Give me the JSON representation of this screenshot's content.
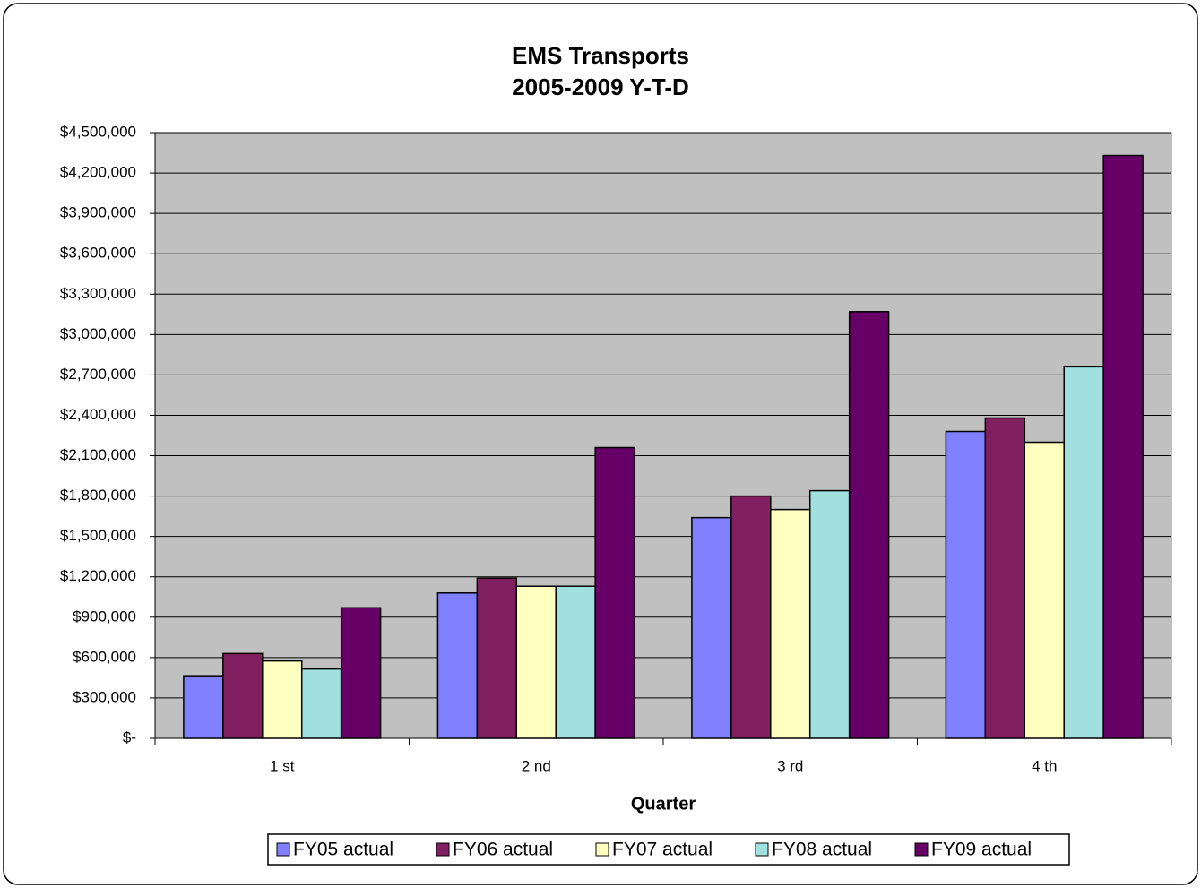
{
  "chart_data": {
    "type": "bar",
    "title": "EMS Transports",
    "subtitle": "2005-2009 Y-T-D",
    "x_label": "Quarter",
    "categories": [
      "1 st",
      "2 nd",
      "3 rd",
      "4 th"
    ],
    "series": [
      {
        "name": "FY05 actual",
        "color": "#8080ff",
        "values": [
          465000,
          1080000,
          1640000,
          2280000
        ]
      },
      {
        "name": "FY06 actual",
        "color": "#802060",
        "values": [
          630000,
          1190000,
          1800000,
          2380000
        ]
      },
      {
        "name": "FY07 actual",
        "color": "#ffffc0",
        "values": [
          575000,
          1130000,
          1700000,
          2200000
        ]
      },
      {
        "name": "FY08 actual",
        "color": "#a0e0e0",
        "values": [
          515000,
          1130000,
          1840000,
          2760000
        ]
      },
      {
        "name": "FY09 actual",
        "color": "#660066",
        "values": [
          970000,
          2160000,
          3170000,
          4330000
        ]
      }
    ],
    "ylim": [
      0,
      4500000
    ],
    "yticks": [
      {
        "value": 0,
        "label": "$-"
      },
      {
        "value": 300000,
        "label": "$300,000"
      },
      {
        "value": 600000,
        "label": "$600,000"
      },
      {
        "value": 900000,
        "label": "$900,000"
      },
      {
        "value": 1200000,
        "label": "$1,200,000"
      },
      {
        "value": 1500000,
        "label": "$1,500,000"
      },
      {
        "value": 1800000,
        "label": "$1,800,000"
      },
      {
        "value": 2100000,
        "label": "$2,100,000"
      },
      {
        "value": 2400000,
        "label": "$2,400,000"
      },
      {
        "value": 2700000,
        "label": "$2,700,000"
      },
      {
        "value": 3000000,
        "label": "$3,000,000"
      },
      {
        "value": 3300000,
        "label": "$3,300,000"
      },
      {
        "value": 3600000,
        "label": "$3,600,000"
      },
      {
        "value": 3900000,
        "label": "$3,900,000"
      },
      {
        "value": 4200000,
        "label": "$4,200,000"
      },
      {
        "value": 4500000,
        "label": "$4,500,000"
      }
    ],
    "grid": true,
    "plot_background": "#c0c0c0",
    "legend": "bottom"
  }
}
